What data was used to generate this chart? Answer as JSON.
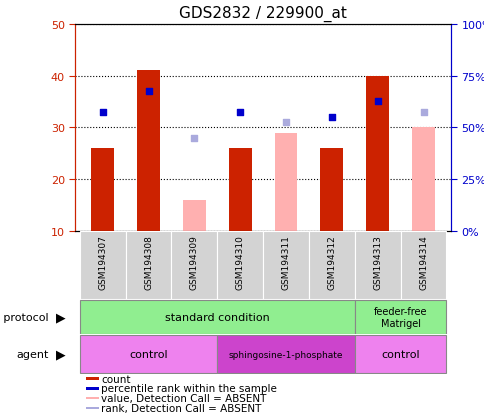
{
  "title": "GDS2832 / 229900_at",
  "samples": [
    "GSM194307",
    "GSM194308",
    "GSM194309",
    "GSM194310",
    "GSM194311",
    "GSM194312",
    "GSM194313",
    "GSM194314"
  ],
  "count_values": [
    26,
    41,
    null,
    26,
    null,
    26,
    40,
    null
  ],
  "count_absent": [
    null,
    null,
    16,
    null,
    29,
    null,
    null,
    30
  ],
  "rank_values": [
    33,
    37,
    null,
    33,
    null,
    32,
    35,
    null
  ],
  "rank_absent": [
    null,
    null,
    28,
    null,
    31,
    null,
    null,
    33
  ],
  "ylim_left": [
    10,
    50
  ],
  "ylim_right": [
    0,
    100
  ],
  "yticks_left": [
    10,
    20,
    30,
    40,
    50
  ],
  "yticks_right": [
    0,
    25,
    50,
    75,
    100
  ],
  "ytick_labels_right": [
    "0%",
    "25%",
    "50%",
    "75%",
    "100%"
  ],
  "bar_color_red": "#CC2200",
  "bar_color_pink": "#FFB0B0",
  "dot_color_blue": "#0000CC",
  "dot_color_light_blue": "#AAAADD",
  "grid_color": "#000000",
  "axis_color_left": "#CC2200",
  "axis_color_right": "#0000CC",
  "color_standard": "#90EE90",
  "color_feeder": "#90EE90",
  "color_control": "#EE82EE",
  "color_sphingosine": "#CC44CC",
  "standard_label": "standard condition",
  "feeder_free_label": "feeder-free\nMatrigel",
  "control1_label": "control",
  "sphingosine_label": "sphingosine-1-phosphate",
  "control2_label": "control",
  "legend_labels": [
    "count",
    "percentile rank within the sample",
    "value, Detection Call = ABSENT",
    "rank, Detection Call = ABSENT"
  ]
}
